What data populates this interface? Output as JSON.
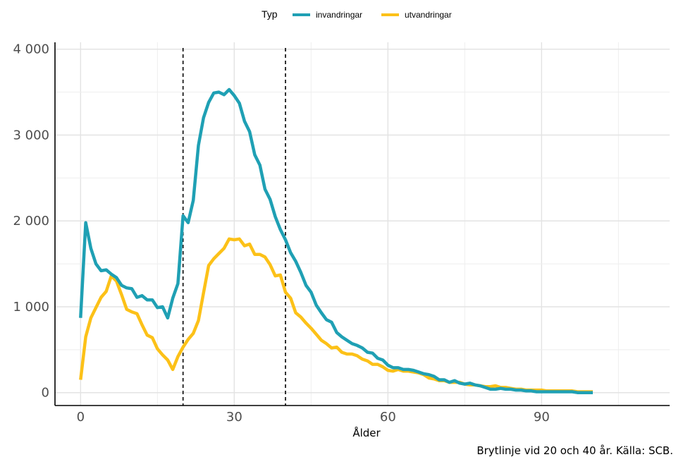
{
  "chart_data": {
    "type": "line",
    "xlabel": "Ålder",
    "ylabel": "",
    "xlim": [
      -5,
      115
    ],
    "ylim": [
      -150,
      4080
    ],
    "x_ticks": [
      0,
      30,
      60,
      90
    ],
    "x_tick_labels": [
      "0",
      "30",
      "60",
      "90"
    ],
    "y_ticks": [
      0,
      1000,
      2000,
      3000,
      4000
    ],
    "y_tick_labels": [
      "0",
      "1 000",
      "2 000",
      "3 000",
      "4 000"
    ],
    "grid": true,
    "legend_position": "top",
    "legend_title": "Typ",
    "vlines": [
      20,
      40
    ],
    "caption": "Brytlinje vid 20 och 40 år. Källa: SCB.",
    "series": [
      {
        "name": "invandringar",
        "color": "#1fa0b4",
        "x": [
          0,
          1,
          2,
          3,
          4,
          5,
          6,
          7,
          8,
          9,
          10,
          11,
          12,
          13,
          14,
          15,
          16,
          17,
          18,
          19,
          20,
          21,
          22,
          23,
          24,
          25,
          26,
          27,
          28,
          29,
          30,
          31,
          32,
          33,
          34,
          35,
          36,
          37,
          38,
          39,
          40,
          41,
          42,
          43,
          44,
          45,
          46,
          47,
          48,
          49,
          50,
          51,
          52,
          53,
          54,
          55,
          56,
          57,
          58,
          59,
          60,
          61,
          62,
          63,
          64,
          65,
          66,
          67,
          68,
          69,
          70,
          71,
          72,
          73,
          74,
          75,
          76,
          77,
          78,
          79,
          80,
          81,
          82,
          83,
          84,
          85,
          86,
          87,
          88,
          89,
          90,
          91,
          92,
          93,
          94,
          95,
          96,
          97,
          98,
          99,
          100
        ],
        "y": [
          870,
          1980,
          1680,
          1500,
          1420,
          1430,
          1380,
          1340,
          1250,
          1220,
          1210,
          1110,
          1130,
          1080,
          1080,
          990,
          1000,
          870,
          1100,
          1270,
          2060,
          1980,
          2240,
          2880,
          3200,
          3380,
          3490,
          3500,
          3470,
          3530,
          3460,
          3370,
          3160,
          3040,
          2770,
          2650,
          2370,
          2250,
          2050,
          1900,
          1780,
          1630,
          1530,
          1400,
          1250,
          1170,
          1020,
          930,
          850,
          820,
          700,
          650,
          610,
          570,
          550,
          520,
          470,
          460,
          400,
          380,
          320,
          290,
          290,
          270,
          270,
          260,
          240,
          220,
          210,
          190,
          150,
          150,
          120,
          140,
          110,
          100,
          110,
          90,
          80,
          60,
          40,
          40,
          50,
          40,
          40,
          30,
          30,
          20,
          20,
          10,
          10,
          10,
          10,
          10,
          10,
          10,
          10,
          0,
          0,
          0,
          0
        ]
      },
      {
        "name": "utvandringar",
        "color": "#fcc118",
        "x": [
          0,
          1,
          2,
          3,
          4,
          5,
          6,
          7,
          8,
          9,
          10,
          11,
          12,
          13,
          14,
          15,
          16,
          17,
          18,
          19,
          20,
          21,
          22,
          23,
          24,
          25,
          26,
          27,
          28,
          29,
          30,
          31,
          32,
          33,
          34,
          35,
          36,
          37,
          38,
          39,
          40,
          41,
          42,
          43,
          44,
          45,
          46,
          47,
          48,
          49,
          50,
          51,
          52,
          53,
          54,
          55,
          56,
          57,
          58,
          59,
          60,
          61,
          62,
          63,
          64,
          65,
          66,
          67,
          68,
          69,
          70,
          71,
          72,
          73,
          74,
          75,
          76,
          77,
          78,
          79,
          80,
          81,
          82,
          83,
          84,
          85,
          86,
          87,
          88,
          89,
          90,
          91,
          92,
          93,
          94,
          95,
          96,
          97,
          98,
          99,
          100
        ],
        "y": [
          150,
          650,
          870,
          990,
          1110,
          1180,
          1360,
          1300,
          1140,
          970,
          940,
          920,
          790,
          670,
          640,
          510,
          440,
          380,
          270,
          420,
          530,
          620,
          690,
          840,
          1160,
          1480,
          1560,
          1620,
          1680,
          1790,
          1780,
          1790,
          1710,
          1730,
          1610,
          1610,
          1580,
          1490,
          1360,
          1370,
          1170,
          1100,
          930,
          880,
          810,
          750,
          680,
          610,
          570,
          520,
          530,
          470,
          450,
          450,
          430,
          390,
          370,
          330,
          330,
          300,
          260,
          250,
          270,
          250,
          250,
          240,
          230,
          210,
          170,
          160,
          140,
          140,
          120,
          120,
          120,
          100,
          90,
          90,
          80,
          70,
          70,
          80,
          60,
          60,
          50,
          40,
          40,
          30,
          30,
          30,
          30,
          20,
          20,
          20,
          20,
          20,
          20,
          10,
          10,
          10,
          10
        ]
      }
    ]
  }
}
